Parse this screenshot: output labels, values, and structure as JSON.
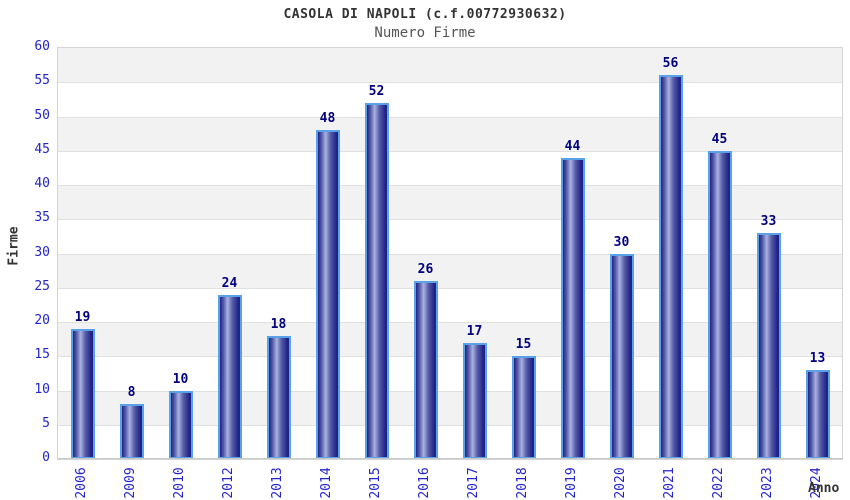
{
  "chart_data": {
    "type": "bar",
    "title": "CASOLA DI NAPOLI (c.f.00772930632)",
    "subtitle": "Numero Firme",
    "xlabel": "Anno",
    "ylabel": "Firme",
    "categories": [
      "2006",
      "2009",
      "2010",
      "2012",
      "2013",
      "2014",
      "2015",
      "2016",
      "2017",
      "2018",
      "2019",
      "2020",
      "2021",
      "2022",
      "2023",
      "2024"
    ],
    "values": [
      19,
      8,
      10,
      24,
      18,
      48,
      52,
      26,
      17,
      15,
      44,
      30,
      56,
      45,
      33,
      13
    ],
    "ylim": [
      0,
      60
    ],
    "ytick_step": 5,
    "yticks": [
      0,
      5,
      10,
      15,
      20,
      25,
      30,
      35,
      40,
      45,
      50,
      55,
      60
    ],
    "grid": "horizontal, alternating shaded bands every 5 units",
    "legend": "none",
    "bar_labels_shown": true
  },
  "colors": {
    "title": "#333333",
    "subtitle": "#555555",
    "axis_tick_label": "#2424cc",
    "bar_value_label": "#000080",
    "bar_border": "#5aa2e8",
    "bar_gradient_dark": "#1f2387",
    "bar_gradient_mid": "#565ca8",
    "bar_gradient_light": "#aab2e0",
    "band_shade": "#f2f2f2",
    "gridline": "#e0e0e0",
    "plot_border": "#d4d4d4",
    "background": "#ffffff"
  }
}
